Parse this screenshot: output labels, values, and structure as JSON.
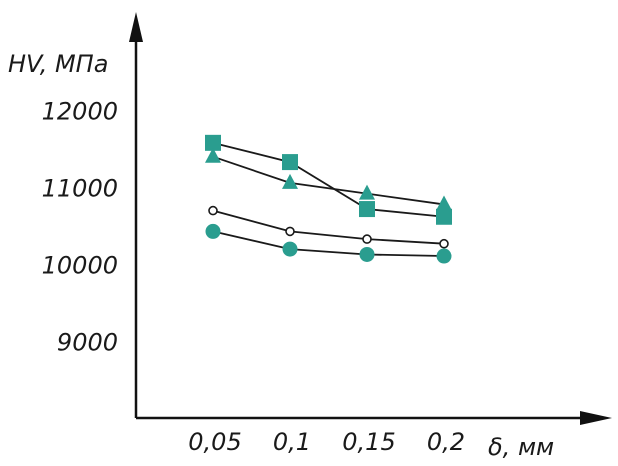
{
  "colors": {
    "axis": "#111111",
    "line": "#1a1a1a",
    "teal": "#2a9d8f",
    "open_fill": "#ffffff"
  },
  "chart_data": {
    "type": "line",
    "title": "",
    "ylabel": "HV, МПа",
    "xlabel": "δ, мм",
    "x_ticks": [
      "0,05",
      "0,1",
      "0,15",
      "0,2"
    ],
    "x": [
      0.05,
      0.1,
      0.15,
      0.2
    ],
    "xlim": [
      0.0,
      0.28
    ],
    "ylim": [
      8000,
      13000
    ],
    "y_ticks": [
      9000,
      10000,
      11000,
      12000
    ],
    "y_tick_labels": [
      "9000",
      "10000",
      "11000",
      "12000"
    ],
    "grid": false,
    "legend": "none",
    "series": [
      {
        "marker": "square",
        "color": "#2a9d8f",
        "values": [
          11580,
          11330,
          10720,
          10620
        ]
      },
      {
        "marker": "triangle",
        "color": "#2a9d8f",
        "values": [
          11400,
          11060,
          10920,
          10780
        ]
      },
      {
        "marker": "open-circle",
        "color": "#1a1a1a",
        "values": [
          10700,
          10430,
          10330,
          10270
        ]
      },
      {
        "marker": "circle",
        "color": "#2a9d8f",
        "values": [
          10430,
          10200,
          10130,
          10110
        ]
      }
    ]
  }
}
